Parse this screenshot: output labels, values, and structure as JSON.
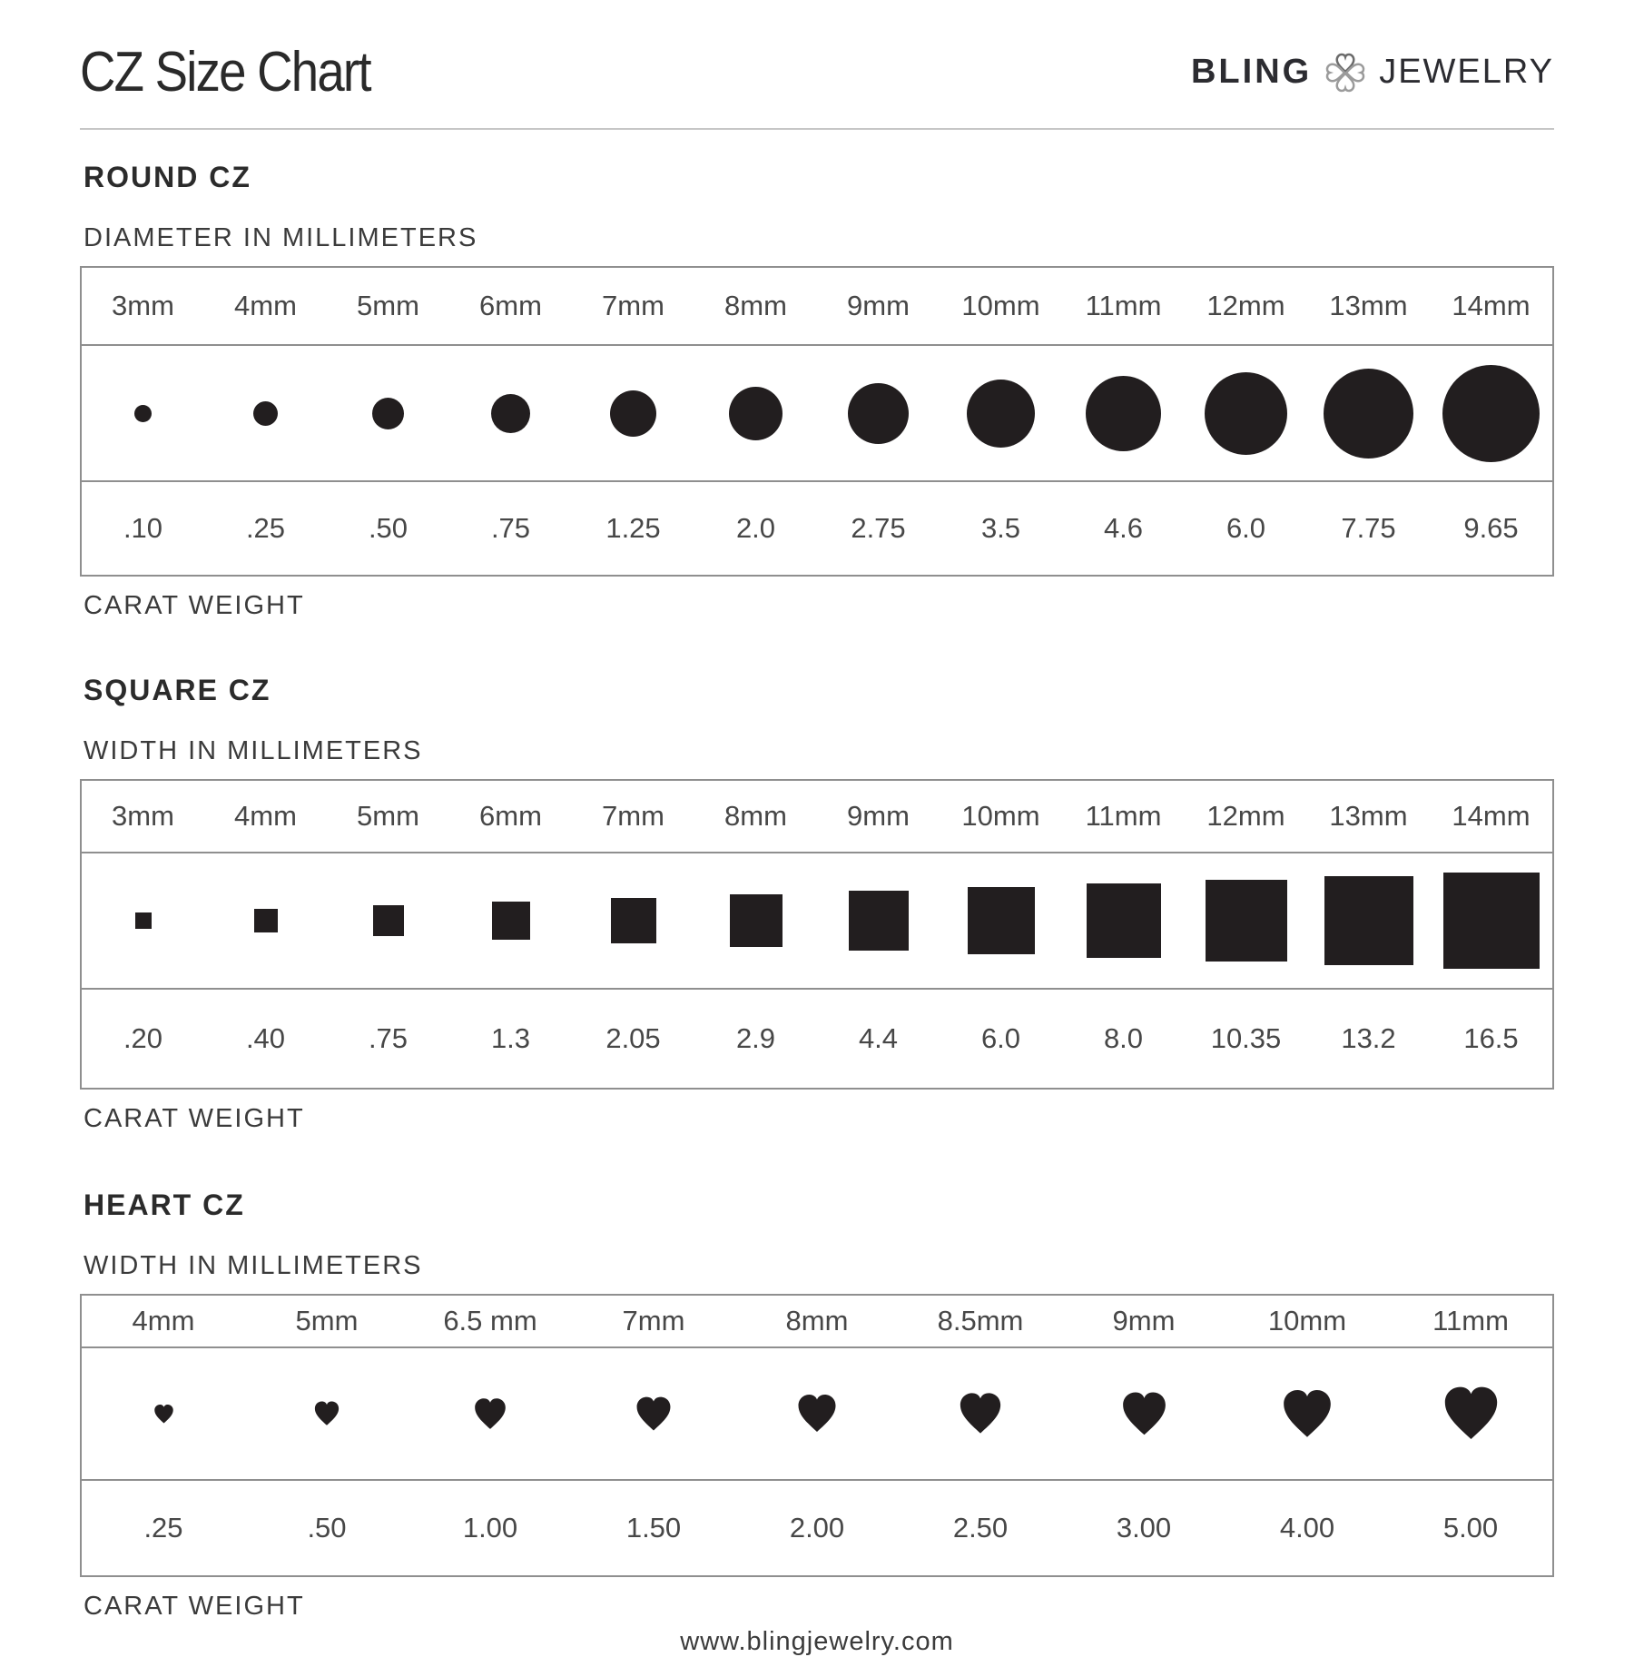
{
  "page": {
    "title": "CZ Size Chart",
    "brand": {
      "name_left": "BLING",
      "name_right": "JEWELRY",
      "icon": "clover-hearts-icon"
    },
    "footer_url": "www.blingjewelry.com"
  },
  "colors": {
    "shape_fill": "#221e1f",
    "table_border": "#8f8f8f",
    "heading_text": "#2b2b2b",
    "value_text": "#474747",
    "logo_clover_dark": "#6b6b6b",
    "logo_clover_light": "#9b9b9b"
  },
  "chart_data": [
    {
      "type": "table",
      "shape": "circle",
      "title": "ROUND CZ",
      "dimension_label": "DIAMETER IN MILLIMETERS",
      "weight_label": "CARAT WEIGHT",
      "sizes_mm": [
        "3mm",
        "4mm",
        "5mm",
        "6mm",
        "7mm",
        "8mm",
        "9mm",
        "10mm",
        "11mm",
        "12mm",
        "13mm",
        "14mm"
      ],
      "mm_values": [
        3,
        4,
        5,
        6,
        7,
        8,
        9,
        10,
        11,
        12,
        13,
        14
      ],
      "carat_weights": [
        ".10",
        ".25",
        ".50",
        ".75",
        "1.25",
        "2.0",
        "2.75",
        "3.5",
        "4.6",
        "6.0",
        "7.75",
        "9.65"
      ]
    },
    {
      "type": "table",
      "shape": "square",
      "title": "SQUARE CZ",
      "dimension_label": "WIDTH IN MILLIMETERS",
      "weight_label": "CARAT WEIGHT",
      "sizes_mm": [
        "3mm",
        "4mm",
        "5mm",
        "6mm",
        "7mm",
        "8mm",
        "9mm",
        "10mm",
        "11mm",
        "12mm",
        "13mm",
        "14mm"
      ],
      "mm_values": [
        3,
        4,
        5,
        6,
        7,
        8,
        9,
        10,
        11,
        12,
        13,
        14
      ],
      "carat_weights": [
        ".20",
        ".40",
        ".75",
        "1.3",
        "2.05",
        "2.9",
        "4.4",
        "6.0",
        "8.0",
        "10.35",
        "13.2",
        "16.5"
      ]
    },
    {
      "type": "table",
      "shape": "heart",
      "title": "HEART CZ",
      "dimension_label": "WIDTH IN MILLIMETERS",
      "weight_label": "CARAT WEIGHT",
      "sizes_mm": [
        "4mm",
        "5mm",
        "6.5 mm",
        "7mm",
        "8mm",
        "8.5mm",
        "9mm",
        "10mm",
        "11mm"
      ],
      "mm_values": [
        4,
        5,
        6.5,
        7,
        8,
        8.5,
        9,
        10,
        11
      ],
      "carat_weights": [
        ".25",
        ".50",
        "1.00",
        "1.50",
        "2.00",
        "2.50",
        "3.00",
        "4.00",
        "5.00"
      ]
    }
  ]
}
